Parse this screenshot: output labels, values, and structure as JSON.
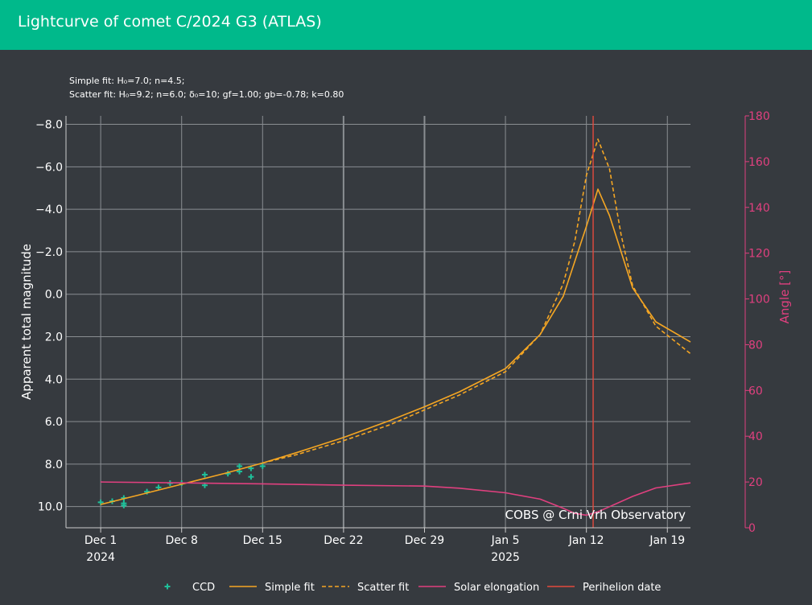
{
  "header": {
    "title": "Lightcurve of comet C/2024 G3 (ATLAS)"
  },
  "chart_data": {
    "type": "line",
    "annotations": [
      "Simple fit: H₀=7.0; n=4.5;",
      "Scatter fit: H₀=9.2; n=6.0; δ₀=10; gf=1.00; gb=-0.78; k=0.80"
    ],
    "watermark": "COBS @ Crni Vrh Observatory",
    "ylabel": "Apparent total magnitude",
    "y2label": "Angle [°]",
    "xlim": [
      "2024-11-28",
      "2025-01-21"
    ],
    "ylim": [
      11,
      -8.4
    ],
    "y2lim": [
      0,
      180
    ],
    "x_ticks": [
      {
        "date": "2024-12-01",
        "label": "Dec 1",
        "sub": "2024"
      },
      {
        "date": "2024-12-08",
        "label": "Dec 8",
        "sub": ""
      },
      {
        "date": "2024-12-15",
        "label": "Dec 15",
        "sub": ""
      },
      {
        "date": "2024-12-22",
        "label": "Dec 22",
        "sub": ""
      },
      {
        "date": "2024-12-29",
        "label": "Dec 29",
        "sub": ""
      },
      {
        "date": "2025-01-05",
        "label": "Jan 5",
        "sub": "2025"
      },
      {
        "date": "2025-01-12",
        "label": "Jan 12",
        "sub": ""
      },
      {
        "date": "2025-01-19",
        "label": "Jan 19",
        "sub": ""
      }
    ],
    "y_ticks": [
      {
        "value": -8,
        "label": "−8.0"
      },
      {
        "value": -6,
        "label": "−6.0"
      },
      {
        "value": -4,
        "label": "−4.0"
      },
      {
        "value": -2,
        "label": "−2.0"
      },
      {
        "value": 0,
        "label": "0.0"
      },
      {
        "value": 2,
        "label": "2.0"
      },
      {
        "value": 4,
        "label": "4.0"
      },
      {
        "value": 6,
        "label": "6.0"
      },
      {
        "value": 8,
        "label": "8.0"
      },
      {
        "value": 10,
        "label": "10.0"
      }
    ],
    "y2_ticks": [
      0,
      20,
      40,
      60,
      80,
      100,
      120,
      140,
      160,
      180
    ],
    "colors": {
      "ccd": "#1fc09a",
      "simple_fit": "#f5a623",
      "scatter_fit": "#f5a623",
      "solar_elongation": "#e0407f",
      "perihelion": "#e34a3d",
      "axis2": "#e0407f",
      "grid": "#8a8e92"
    },
    "series": [
      {
        "name": "CCD",
        "kind": "scatter",
        "axis": "y",
        "x": [
          "2024-12-01",
          "2024-12-02",
          "2024-12-03",
          "2024-12-03",
          "2024-12-03",
          "2024-12-05",
          "2024-12-06",
          "2024-12-07",
          "2024-12-08",
          "2024-12-10",
          "2024-12-10",
          "2024-12-12",
          "2024-12-13",
          "2024-12-13",
          "2024-12-14",
          "2024-12-14",
          "2024-12-15"
        ],
        "y": [
          9.8,
          9.75,
          9.6,
          9.85,
          9.95,
          9.3,
          9.1,
          8.9,
          8.9,
          8.5,
          9.0,
          8.45,
          8.35,
          8.1,
          8.2,
          8.6,
          8.1
        ]
      },
      {
        "name": "Simple fit",
        "kind": "line",
        "axis": "y",
        "x": [
          "2024-12-01",
          "2024-12-04",
          "2024-12-08",
          "2024-12-12",
          "2024-12-15",
          "2024-12-18",
          "2024-12-22",
          "2024-12-26",
          "2024-12-29",
          "2025-01-01",
          "2025-01-05",
          "2025-01-08",
          "2025-01-10",
          "2025-01-12",
          "2025-01-13",
          "2025-01-14",
          "2025-01-16",
          "2025-01-18",
          "2025-01-21"
        ],
        "y": [
          9.9,
          9.5,
          8.95,
          8.4,
          7.95,
          7.45,
          6.75,
          5.95,
          5.3,
          4.6,
          3.5,
          1.9,
          0.1,
          -3.2,
          -4.95,
          -3.7,
          -0.3,
          1.3,
          2.25
        ]
      },
      {
        "name": "Scatter fit",
        "kind": "line",
        "dash": true,
        "axis": "y",
        "x": [
          "2024-12-15",
          "2024-12-18",
          "2024-12-22",
          "2024-12-26",
          "2024-12-29",
          "2025-01-01",
          "2025-01-05",
          "2025-01-08",
          "2025-01-10",
          "2025-01-11",
          "2025-01-12",
          "2025-01-13",
          "2025-01-14",
          "2025-01-15",
          "2025-01-16",
          "2025-01-18",
          "2025-01-21"
        ],
        "y": [
          7.95,
          7.55,
          6.9,
          6.15,
          5.45,
          4.75,
          3.65,
          1.9,
          -0.5,
          -2.5,
          -5.6,
          -7.3,
          -5.9,
          -2.8,
          -0.4,
          1.5,
          2.8
        ]
      },
      {
        "name": "Solar elongation",
        "kind": "line",
        "axis": "y2",
        "x": [
          "2024-12-01",
          "2024-12-08",
          "2024-12-15",
          "2024-12-22",
          "2024-12-29",
          "2025-01-01",
          "2025-01-05",
          "2025-01-08",
          "2025-01-10",
          "2025-01-11",
          "2025-01-12",
          "2025-01-13",
          "2025-01-14",
          "2025-01-16",
          "2025-01-18",
          "2025-01-21"
        ],
        "y": [
          20,
          19.6,
          19.2,
          18.6,
          18.2,
          17.3,
          15.3,
          12.5,
          8.5,
          6.3,
          5.5,
          7.0,
          9.2,
          13.7,
          17.4,
          19.6
        ]
      },
      {
        "name": "Perihelion date",
        "kind": "vline",
        "x": [
          "2025-01-13"
        ]
      }
    ],
    "legend": {
      "placement": "bottom-center",
      "entries": [
        "CCD",
        "Simple fit",
        "Scatter fit",
        "Solar elongation",
        "Perihelion date"
      ]
    },
    "grid": true
  }
}
